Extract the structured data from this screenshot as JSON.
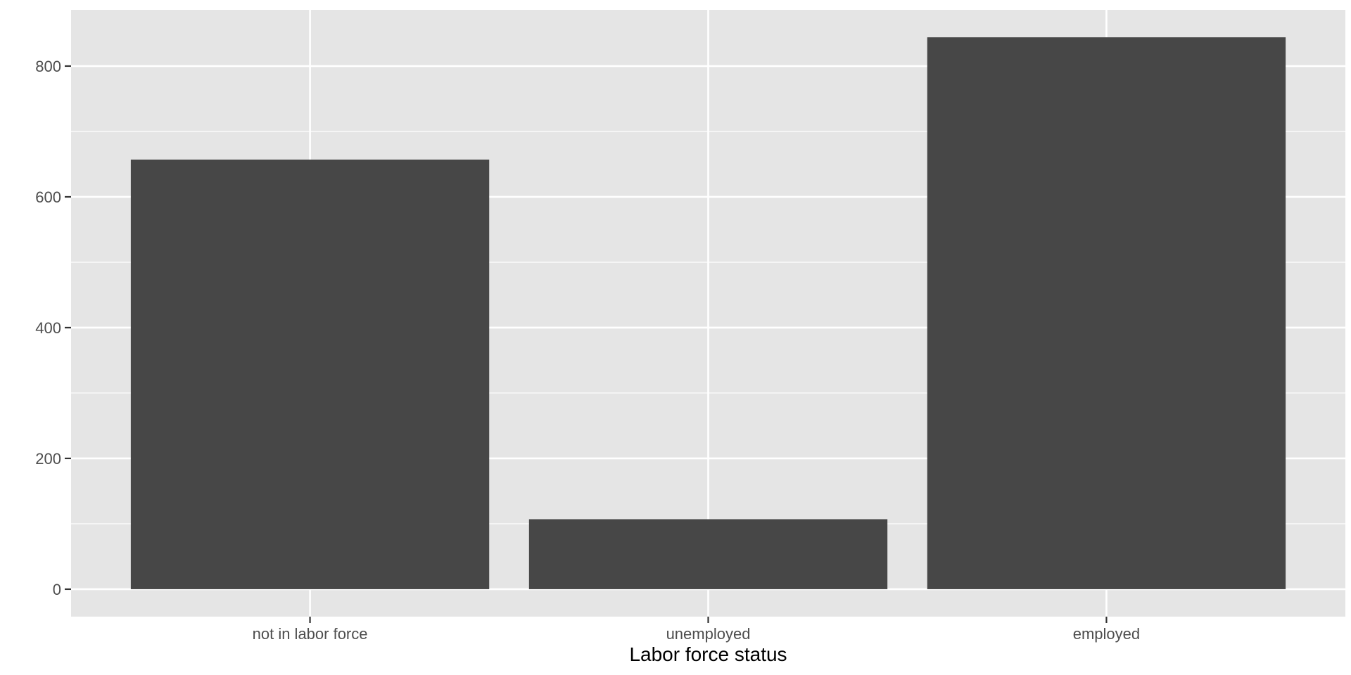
{
  "chart_data": {
    "type": "bar",
    "title": "",
    "xlabel": "Labor force status",
    "ylabel": "",
    "categories": [
      "not in labor force",
      "unemployed",
      "employed"
    ],
    "values": [
      657,
      107,
      844
    ],
    "ylim": [
      -42,
      886
    ],
    "yticks": [
      0,
      200,
      400,
      600,
      800
    ],
    "ytick_labels": [
      "0",
      "200",
      "400",
      "600",
      "800"
    ],
    "grid": true,
    "legend": "none",
    "colors": {
      "panel_background": "#e5e5e5",
      "grid": "#ffffff",
      "bar_fill": "#474747",
      "tick_text": "#4d4d4d",
      "title_text": "#000000"
    }
  }
}
